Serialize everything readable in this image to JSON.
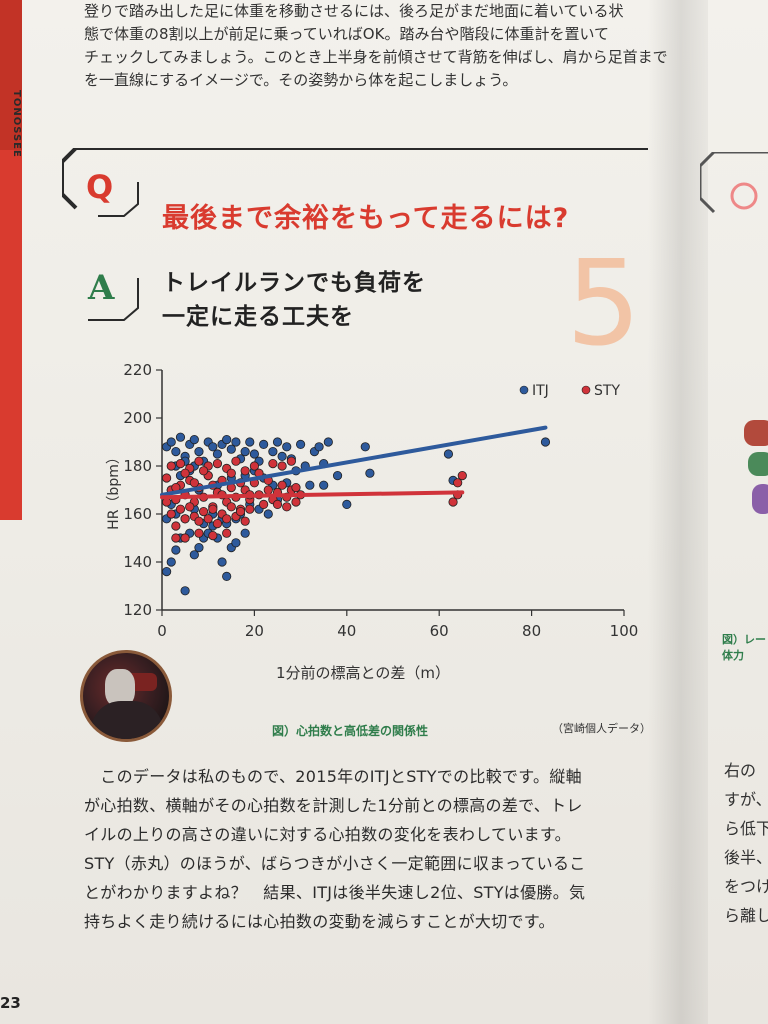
{
  "intro": {
    "lines": [
      "登りで踏み出した足に体重を移動させるには、後ろ足がまだ地面に着いている状",
      "態で体重の8割以上が前足に乗っていればOK。踏み台や階段に体重計を置いて",
      "チェックしてみましょう。このとき上半身を前傾させて背筋を伸ばし、肩から足首まで",
      "を一直線にするイメージで。その姿勢から体を起こしましょう。"
    ]
  },
  "side_label": "TONOSSEE",
  "question": {
    "letter": "Q",
    "title": "最後まで余裕をもって走るには?"
  },
  "answer": {
    "letter": "A",
    "line1": "トレイルランでも負荷を",
    "line2": "一定に走る工夫を"
  },
  "number": "5",
  "chart_data": {
    "type": "scatter",
    "title": "",
    "xlabel": "1分前の標高との差（m）",
    "ylabel": "HR（bpm）",
    "xlim": [
      0,
      100
    ],
    "ylim": [
      120,
      220
    ],
    "x_ticks": [
      0,
      20,
      40,
      60,
      80,
      100
    ],
    "y_ticks": [
      120,
      140,
      160,
      180,
      200,
      220
    ],
    "legend_position": "top-right",
    "series": [
      {
        "name": "ITJ",
        "color": "#2e5a9c",
        "trend": {
          "x": [
            0,
            83
          ],
          "y": [
            168,
            196
          ]
        },
        "points": [
          [
            1,
            136
          ],
          [
            2,
            140
          ],
          [
            3,
            145
          ],
          [
            5,
            128
          ],
          [
            7,
            143
          ],
          [
            9,
            150
          ],
          [
            11,
            155
          ],
          [
            13,
            140
          ],
          [
            14,
            134
          ],
          [
            15,
            146
          ],
          [
            16,
            148
          ],
          [
            18,
            152
          ],
          [
            1,
            188
          ],
          [
            2,
            190
          ],
          [
            3,
            186
          ],
          [
            4,
            192
          ],
          [
            5,
            184
          ],
          [
            6,
            189
          ],
          [
            7,
            191
          ],
          [
            8,
            186
          ],
          [
            9,
            182
          ],
          [
            10,
            190
          ],
          [
            11,
            188
          ],
          [
            12,
            185
          ],
          [
            13,
            189
          ],
          [
            14,
            191
          ],
          [
            15,
            187
          ],
          [
            16,
            190
          ],
          [
            17,
            183
          ],
          [
            18,
            186
          ],
          [
            19,
            190
          ],
          [
            20,
            185
          ],
          [
            21,
            182
          ],
          [
            22,
            189
          ],
          [
            24,
            186
          ],
          [
            25,
            190
          ],
          [
            26,
            184
          ],
          [
            27,
            188
          ],
          [
            28,
            183
          ],
          [
            30,
            189
          ],
          [
            31,
            180
          ],
          [
            33,
            186
          ],
          [
            34,
            188
          ],
          [
            35,
            181
          ],
          [
            36,
            190
          ],
          [
            38,
            176
          ],
          [
            40,
            164
          ],
          [
            44,
            188
          ],
          [
            45,
            177
          ],
          [
            62,
            185
          ],
          [
            63,
            174
          ],
          [
            83,
            190
          ],
          [
            27,
            173
          ],
          [
            29,
            178
          ],
          [
            32,
            172
          ],
          [
            35,
            172
          ],
          [
            20,
            178
          ],
          [
            10,
            176
          ],
          [
            12,
            172
          ],
          [
            6,
            178
          ],
          [
            4,
            176
          ],
          [
            8,
            170
          ],
          [
            15,
            175
          ],
          [
            18,
            176
          ],
          [
            22,
            175
          ],
          [
            24,
            172
          ],
          [
            2,
            170
          ],
          [
            3,
            160
          ],
          [
            5,
            158
          ],
          [
            7,
            162
          ],
          [
            9,
            156
          ],
          [
            11,
            160
          ],
          [
            13,
            158
          ],
          [
            17,
            160
          ],
          [
            19,
            164
          ],
          [
            21,
            162
          ],
          [
            23,
            160
          ],
          [
            25,
            166
          ],
          [
            4,
            150
          ],
          [
            6,
            152
          ],
          [
            8,
            146
          ],
          [
            10,
            152
          ],
          [
            12,
            150
          ],
          [
            14,
            156
          ],
          [
            16,
            158
          ],
          [
            1,
            158
          ],
          [
            2,
            164
          ],
          [
            3,
            180
          ],
          [
            5,
            182
          ],
          [
            7,
            180
          ]
        ]
      },
      {
        "name": "STY",
        "color": "#d0333a",
        "trend": {
          "x": [
            0,
            65
          ],
          "y": [
            167,
            169
          ]
        },
        "points": [
          [
            1,
            175
          ],
          [
            2,
            170
          ],
          [
            3,
            166
          ],
          [
            4,
            172
          ],
          [
            5,
            168
          ],
          [
            6,
            174
          ],
          [
            7,
            165
          ],
          [
            8,
            171
          ],
          [
            9,
            167
          ],
          [
            10,
            176
          ],
          [
            11,
            163
          ],
          [
            12,
            169
          ],
          [
            13,
            174
          ],
          [
            14,
            165
          ],
          [
            15,
            171
          ],
          [
            16,
            167
          ],
          [
            17,
            162
          ],
          [
            18,
            170
          ],
          [
            19,
            166
          ],
          [
            20,
            173
          ],
          [
            21,
            168
          ],
          [
            22,
            164
          ],
          [
            23,
            170
          ],
          [
            24,
            166
          ],
          [
            25,
            169
          ],
          [
            26,
            172
          ],
          [
            27,
            167
          ],
          [
            28,
            170
          ],
          [
            29,
            171
          ],
          [
            30,
            168
          ],
          [
            2,
            160
          ],
          [
            3,
            155
          ],
          [
            4,
            162
          ],
          [
            5,
            158
          ],
          [
            6,
            163
          ],
          [
            7,
            159
          ],
          [
            8,
            157
          ],
          [
            9,
            161
          ],
          [
            10,
            158
          ],
          [
            11,
            162
          ],
          [
            12,
            156
          ],
          [
            13,
            160
          ],
          [
            14,
            158
          ],
          [
            15,
            163
          ],
          [
            16,
            159
          ],
          [
            17,
            161
          ],
          [
            18,
            157
          ],
          [
            19,
            162
          ],
          [
            3,
            150
          ],
          [
            5,
            150
          ],
          [
            8,
            152
          ],
          [
            11,
            151
          ],
          [
            14,
            152
          ],
          [
            2,
            180
          ],
          [
            4,
            181
          ],
          [
            6,
            179
          ],
          [
            8,
            182
          ],
          [
            10,
            180
          ],
          [
            12,
            181
          ],
          [
            14,
            179
          ],
          [
            16,
            182
          ],
          [
            18,
            178
          ],
          [
            20,
            180
          ],
          [
            24,
            181
          ],
          [
            26,
            180
          ],
          [
            28,
            182
          ],
          [
            63,
            165
          ],
          [
            64,
            173
          ],
          [
            65,
            176
          ],
          [
            64,
            168
          ],
          [
            1,
            165
          ],
          [
            3,
            171
          ],
          [
            5,
            177
          ],
          [
            7,
            173
          ],
          [
            9,
            178
          ],
          [
            11,
            172
          ],
          [
            13,
            168
          ],
          [
            15,
            177
          ],
          [
            17,
            173
          ],
          [
            19,
            168
          ],
          [
            21,
            177
          ],
          [
            23,
            174
          ],
          [
            25,
            164
          ],
          [
            27,
            163
          ],
          [
            29,
            165
          ]
        ]
      }
    ]
  },
  "figure": {
    "caption": "図）心拍数と高低差の関係性",
    "source": "（宮崎個人データ）"
  },
  "body": {
    "lines": [
      "　このデータは私のもので、2015年のITJとSTYでの比較です。縦軸",
      "が心拍数、横軸がその心拍数を計測した1分前との標高の差で、トレ",
      "イルの上りの高さの違いに対する心拍数の変化を表わしています。",
      "STY（赤丸）のほうが、ばらつきが小さく一定範囲に収まっているこ",
      "とがわかりますよね？　結果、ITJは後半失速し2位、STYは優勝。気",
      "持ちよく走り続けるには心拍数の変動を減らすことが大切です。"
    ]
  },
  "right_page": {
    "caption_line1": "図）レー",
    "caption_line2": "体力",
    "lines": [
      "右の",
      "すが、",
      "ら低下",
      "後半、",
      "をつけ",
      "ら離し"
    ]
  },
  "page_number": "23"
}
